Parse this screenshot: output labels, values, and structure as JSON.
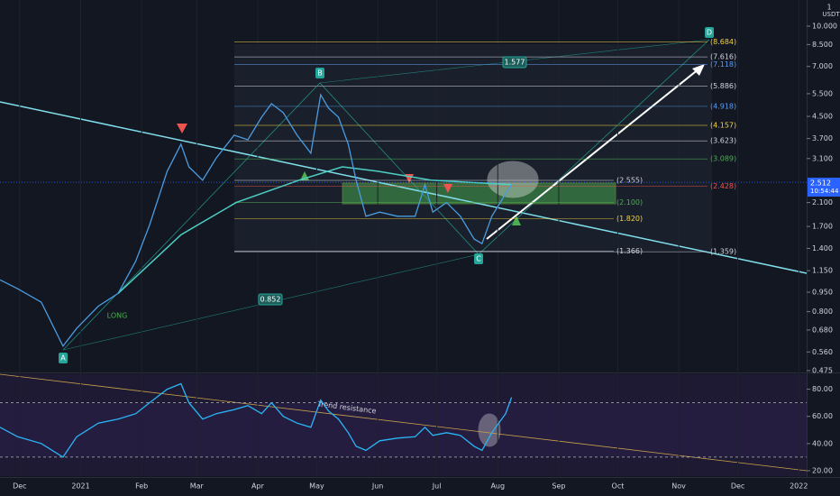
{
  "axis_top_label": "1",
  "axis_unit": "USDT",
  "chart_data": [
    {
      "type": "line",
      "x": [
        -10,
        -1,
        11,
        22,
        29,
        40,
        50,
        59,
        66,
        75,
        82,
        86,
        93,
        100,
        109,
        116,
        123,
        128,
        134,
        141,
        148,
        153,
        157,
        162,
        167,
        171,
        176,
        183,
        192,
        201,
        206,
        210,
        217,
        224,
        231,
        235,
        240,
        247,
        250
      ],
      "series": [
        {
          "color": "#4a9be0",
          "values": [
            1.06,
            0.98,
            0.87,
            0.59,
            0.69,
            0.84,
            0.94,
            1.25,
            1.72,
            2.77,
            3.52,
            2.88,
            2.56,
            3.12,
            3.81,
            3.66,
            4.47,
            5.04,
            4.65,
            3.81,
            3.25,
            5.45,
            4.84,
            4.47,
            3.52,
            2.56,
            1.86,
            1.93,
            1.86,
            1.86,
            2.46,
            1.93,
            2.1,
            1.86,
            1.52,
            1.46,
            1.86,
            2.27,
            2.46
          ]
        }
      ],
      "ma": {
        "color": "#4dd0c4",
        "x": [
          50,
          82,
          110,
          142,
          164,
          182,
          209,
          250
        ],
        "values": [
          0.94,
          1.58,
          2.1,
          2.56,
          2.88,
          2.77,
          2.56,
          2.46
        ]
      },
      "xlim": [
        -10,
        400
      ],
      "xticks": [
        {
          "value": 0,
          "label": "Dec"
        },
        {
          "value": 31,
          "label": "2021"
        },
        {
          "value": 62,
          "label": "Feb"
        },
        {
          "value": 90,
          "label": "Mar"
        },
        {
          "value": 121,
          "label": "Apr"
        },
        {
          "value": 151,
          "label": "May"
        },
        {
          "value": 182,
          "label": "Jun"
        },
        {
          "value": 212,
          "label": "Jul"
        },
        {
          "value": 243,
          "label": "Aug"
        },
        {
          "value": 274,
          "label": "Sep"
        },
        {
          "value": 304,
          "label": "Oct"
        },
        {
          "value": 335,
          "label": "Nov"
        },
        {
          "value": 365,
          "label": "Dec"
        },
        {
          "value": 396,
          "label": "2022"
        }
      ],
      "ylim": [
        0.471,
        12.6
      ],
      "log_scale": true,
      "yticks": [
        {
          "value": 10,
          "label": "10.000"
        },
        {
          "value": 8.5,
          "label": "8.500"
        },
        {
          "value": 7,
          "label": "7.000"
        },
        {
          "value": 5.5,
          "label": "5.500"
        },
        {
          "value": 4.5,
          "label": "4.500"
        },
        {
          "value": 3.7,
          "label": "3.700"
        },
        {
          "value": 3.1,
          "label": "3.100"
        },
        {
          "value": 2.1,
          "label": "2.100"
        },
        {
          "value": 1.7,
          "label": "1.700"
        },
        {
          "value": 1.4,
          "label": "1.400"
        },
        {
          "value": 1.15,
          "label": "1.150"
        },
        {
          "value": 0.95,
          "label": "0.950"
        },
        {
          "value": 0.8,
          "label": "0.800"
        },
        {
          "value": 0.68,
          "label": "0.680"
        },
        {
          "value": 0.56,
          "label": "0.560"
        },
        {
          "value": 0.475,
          "label": "0.475"
        }
      ],
      "last_price": {
        "value": 2.512,
        "label": "2.512"
      },
      "countdown": "10:54:44",
      "fib_levels": [
        {
          "value": 8.684,
          "label": "(8.684)",
          "color": "#f5d142"
        },
        {
          "value": 7.616,
          "label": "(7.616)",
          "color": "#d1d4dc"
        },
        {
          "value": 7.118,
          "label": "(7.118)",
          "color": "#5b9cf0"
        },
        {
          "value": 5.886,
          "label": "(5.886)",
          "color": "#d1d4dc"
        },
        {
          "value": 4.918,
          "label": "(4.918)",
          "color": "#5b9cf0"
        },
        {
          "value": 4.157,
          "label": "(4.157)",
          "color": "#f5d142"
        },
        {
          "value": 3.623,
          "label": "(3.623)",
          "color": "#d1d4dc"
        },
        {
          "value": 3.089,
          "label": "(3.089)",
          "color": "#4caf50"
        },
        {
          "value": 2.555,
          "label": "(2.555)",
          "color": "#d1d4dc"
        },
        {
          "value": 2.428,
          "label": "(2.428)",
          "color": "#ef5350"
        },
        {
          "value": 2.1,
          "label": "(2.100)",
          "color": "#4caf50"
        },
        {
          "value": 1.82,
          "label": "(1.820)",
          "color": "#f5d142"
        },
        {
          "value": 1.366,
          "label": "(1.366)",
          "color": "#d1d4dc"
        },
        {
          "value": 1.359,
          "label": "(1.359)",
          "color": "#d1d4dc"
        }
      ],
      "pattern_points": [
        "A",
        "B",
        "C",
        "D"
      ],
      "ratios": [
        "1.577",
        "0.852"
      ],
      "annotations": [
        "LONG"
      ]
    },
    {
      "type": "line",
      "x": [
        -10,
        -1,
        11,
        22,
        29,
        40,
        50,
        59,
        66,
        75,
        82,
        86,
        93,
        100,
        109,
        116,
        123,
        128,
        134,
        141,
        148,
        153,
        157,
        162,
        167,
        171,
        176,
        183,
        192,
        201,
        206,
        210,
        217,
        224,
        231,
        235,
        240,
        247,
        250
      ],
      "series": [
        {
          "color": "#29b6f6",
          "values": [
            52,
            45,
            40,
            30,
            45,
            55,
            58,
            62,
            70,
            80,
            84,
            70,
            58,
            62,
            65,
            68,
            62,
            70,
            60,
            55,
            52,
            72,
            64,
            58,
            48,
            38,
            35,
            42,
            44,
            45,
            52,
            46,
            48,
            46,
            38,
            35,
            48,
            62,
            74
          ]
        }
      ],
      "ylim": [
        16,
        91
      ],
      "yticks": [
        {
          "value": 80,
          "label": "80.00"
        },
        {
          "value": 60,
          "label": "60.00"
        },
        {
          "value": 40,
          "label": "40.00"
        },
        {
          "value": 20,
          "label": "20.00"
        }
      ],
      "levels": [
        70,
        30
      ],
      "annotation": "Trend resistance"
    }
  ]
}
